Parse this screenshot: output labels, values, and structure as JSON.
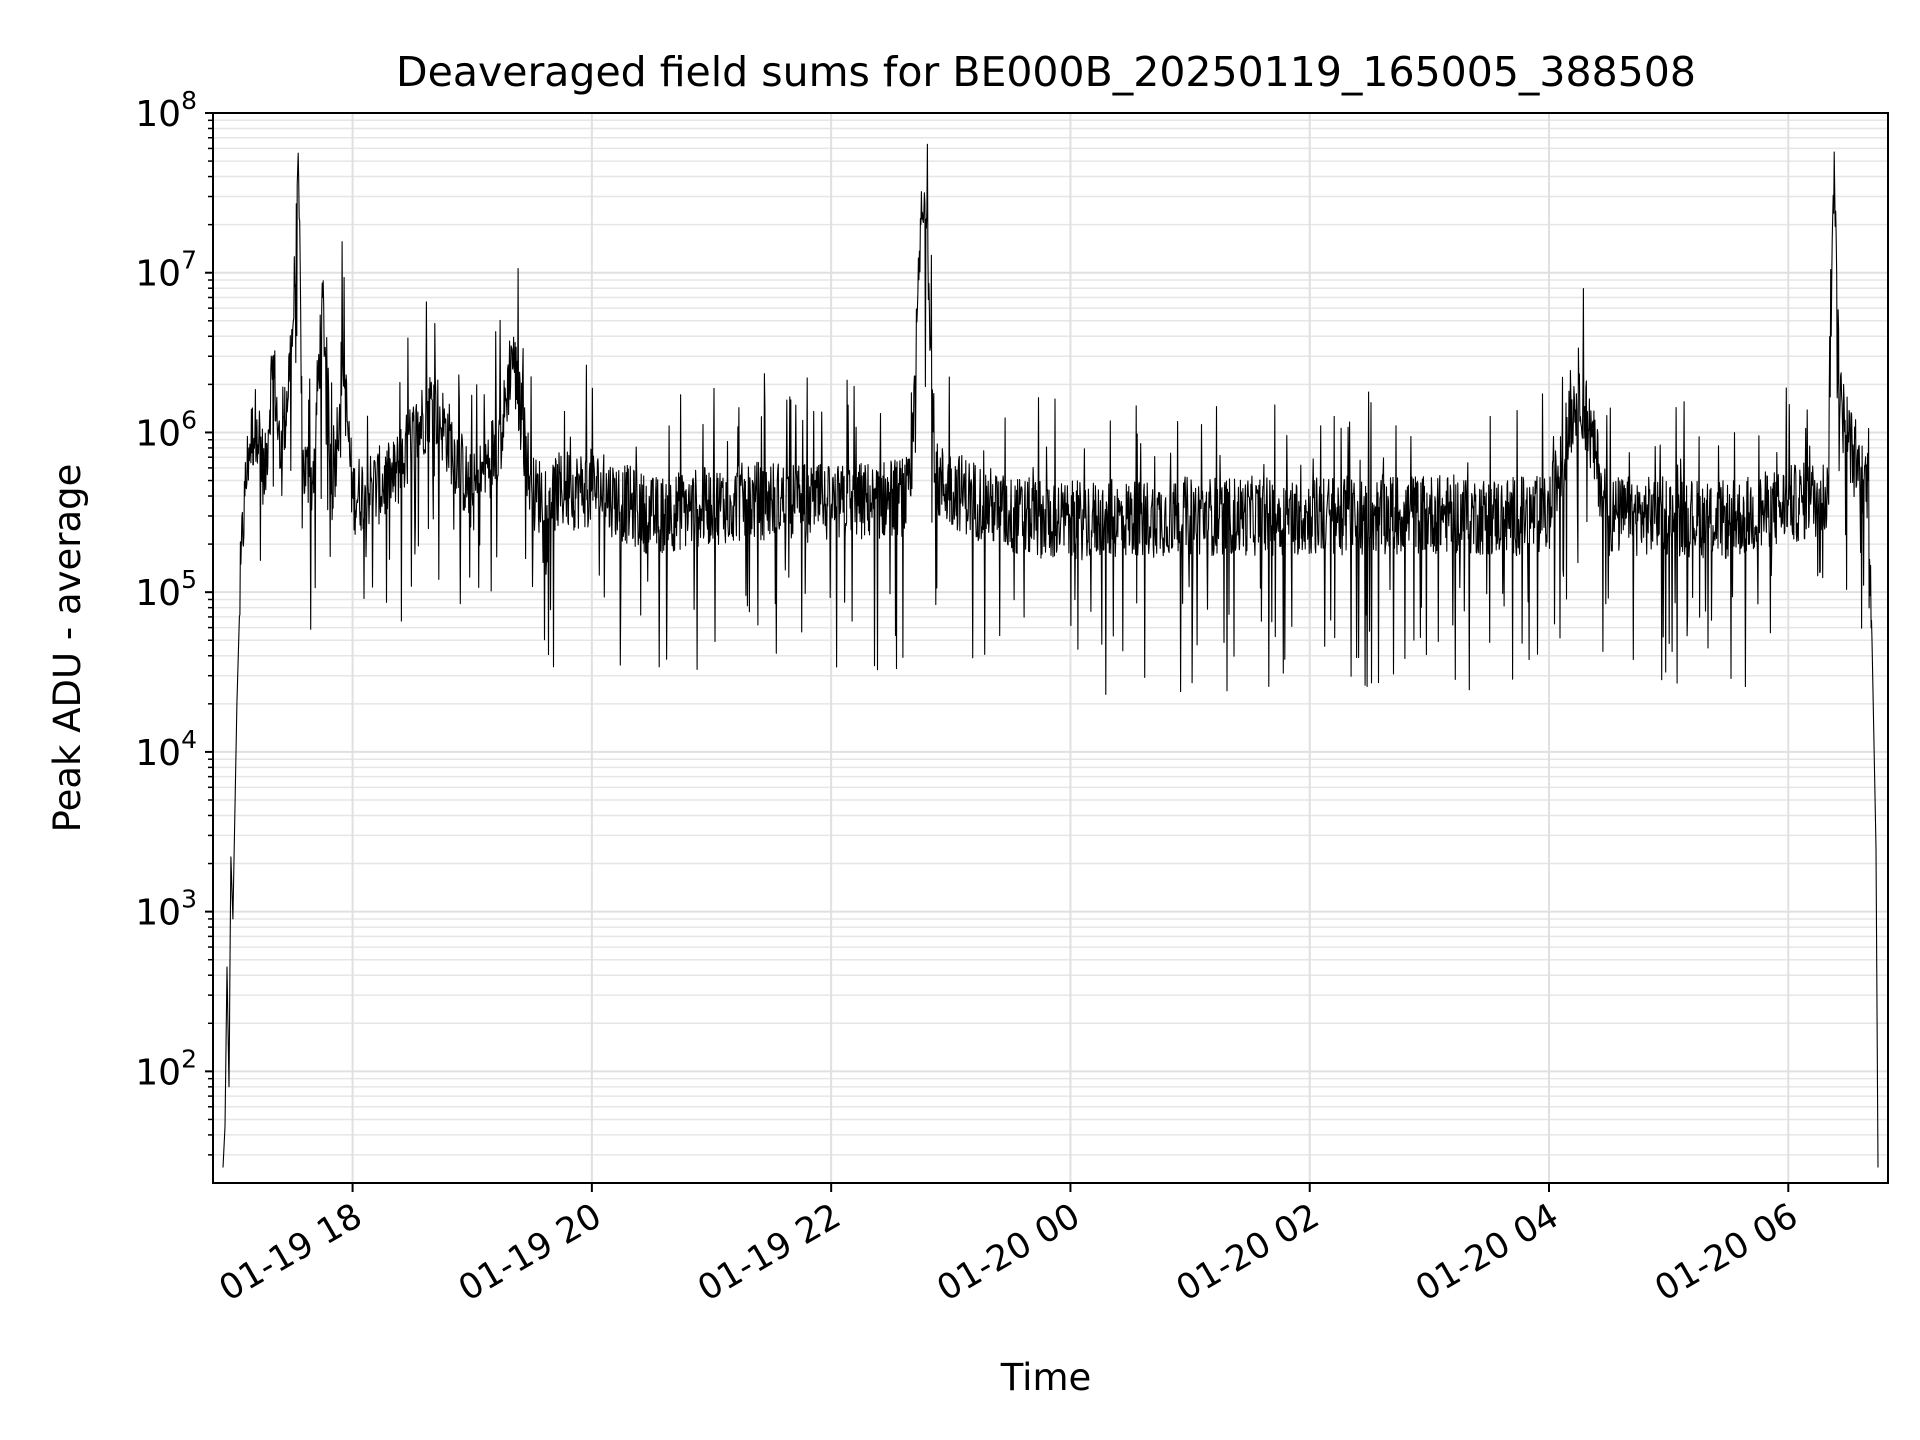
{
  "chart_data": {
    "type": "line",
    "title": "Deaveraged field sums for BE000B_20250119_165005_388508",
    "xlabel": "Time",
    "ylabel": "Peak ADU - average",
    "y_scale": "log",
    "ylim": [
      20,
      100000000
    ],
    "xlim": [
      "2025-01-19 16:50",
      "2025-01-20 06:50"
    ],
    "grid": true,
    "line_color": "#000000",
    "x_ticks": [
      {
        "t": "2025-01-19 18:00",
        "label": "01-19 18"
      },
      {
        "t": "2025-01-19 20:00",
        "label": "01-19 20"
      },
      {
        "t": "2025-01-19 22:00",
        "label": "01-19 22"
      },
      {
        "t": "2025-01-20 00:00",
        "label": "01-20 00"
      },
      {
        "t": "2025-01-20 02:00",
        "label": "01-20 02"
      },
      {
        "t": "2025-01-20 04:00",
        "label": "01-20 04"
      },
      {
        "t": "2025-01-20 06:00",
        "label": "01-20 06"
      }
    ],
    "y_ticks": [
      {
        "value": 100,
        "base": "10",
        "exp": "2"
      },
      {
        "value": 1000,
        "base": "10",
        "exp": "3"
      },
      {
        "value": 10000,
        "base": "10",
        "exp": "4"
      },
      {
        "value": 100000,
        "base": "10",
        "exp": "5"
      },
      {
        "value": 1000000,
        "base": "10",
        "exp": "6"
      },
      {
        "value": 10000000,
        "base": "10",
        "exp": "7"
      },
      {
        "value": 100000000,
        "base": "10",
        "exp": "8"
      }
    ],
    "series": [
      {
        "points": [
          [
            "2025-01-19 16:55",
            25
          ],
          [
            "2025-01-19 16:56",
            45
          ],
          [
            "2025-01-19 16:57",
            450
          ],
          [
            "2025-01-19 16:58",
            80
          ],
          [
            "2025-01-19 16:59",
            2200
          ],
          [
            "2025-01-19 17:00",
            900
          ],
          [
            "2025-01-19 17:02",
            20000
          ],
          [
            "2025-01-19 17:04",
            150000
          ],
          [
            "2025-01-19 17:06",
            400000
          ],
          [
            "2025-01-19 17:08",
            800000
          ],
          [
            "2025-01-19 17:12",
            1200000
          ],
          [
            "2025-01-19 17:16",
            500000
          ],
          [
            "2025-01-19 17:20",
            3000000
          ],
          [
            "2025-01-19 17:24",
            600000
          ],
          [
            "2025-01-19 17:30",
            4500000
          ],
          [
            "2025-01-19 17:33",
            38000000
          ],
          [
            "2025-01-19 17:35",
            600000
          ],
          [
            "2025-01-19 17:40",
            500000
          ],
          [
            "2025-01-19 17:45",
            7000000
          ],
          [
            "2025-01-19 17:50",
            400000
          ],
          [
            "2025-01-19 17:55",
            3000000
          ],
          [
            "2025-01-19 18:00",
            400000
          ],
          [
            "2025-01-19 18:20",
            500000
          ],
          [
            "2025-01-19 18:40",
            1600000
          ],
          [
            "2025-01-19 19:00",
            400000
          ],
          [
            "2025-01-19 19:15",
            1000000
          ],
          [
            "2025-01-19 19:20",
            3300000
          ],
          [
            "2025-01-19 19:30",
            400000
          ],
          [
            "2025-01-19 20:00",
            450000
          ],
          [
            "2025-01-19 20:30",
            300000
          ],
          [
            "2025-01-19 21:00",
            350000
          ],
          [
            "2025-01-19 21:30",
            380000
          ],
          [
            "2025-01-19 22:00",
            350000
          ],
          [
            "2025-01-19 22:40",
            400000
          ],
          [
            "2025-01-19 22:45",
            20000000
          ],
          [
            "2025-01-19 22:48",
            25000000
          ],
          [
            "2025-01-19 22:52",
            500000
          ],
          [
            "2025-01-19 23:30",
            300000
          ],
          [
            "2025-01-20 00:00",
            280000
          ],
          [
            "2025-01-20 01:00",
            300000
          ],
          [
            "2025-01-20 02:00",
            300000
          ],
          [
            "2025-01-20 03:00",
            310000
          ],
          [
            "2025-01-20 03:30",
            300000
          ],
          [
            "2025-01-20 04:00",
            300000
          ],
          [
            "2025-01-20 04:15",
            2000000
          ],
          [
            "2025-01-20 04:30",
            300000
          ],
          [
            "2025-01-20 05:00",
            300000
          ],
          [
            "2025-01-20 05:30",
            280000
          ],
          [
            "2025-01-20 06:00",
            350000
          ],
          [
            "2025-01-20 06:20",
            400000
          ],
          [
            "2025-01-20 06:23",
            57000000
          ],
          [
            "2025-01-20 06:26",
            1500000
          ],
          [
            "2025-01-20 06:30",
            1000000
          ],
          [
            "2025-01-20 06:35",
            500000
          ],
          [
            "2025-01-20 06:40",
            500000
          ],
          [
            "2025-01-20 06:42",
            50000
          ],
          [
            "2025-01-20 06:44",
            2500
          ],
          [
            "2025-01-20 06:45",
            25
          ]
        ]
      }
    ]
  }
}
